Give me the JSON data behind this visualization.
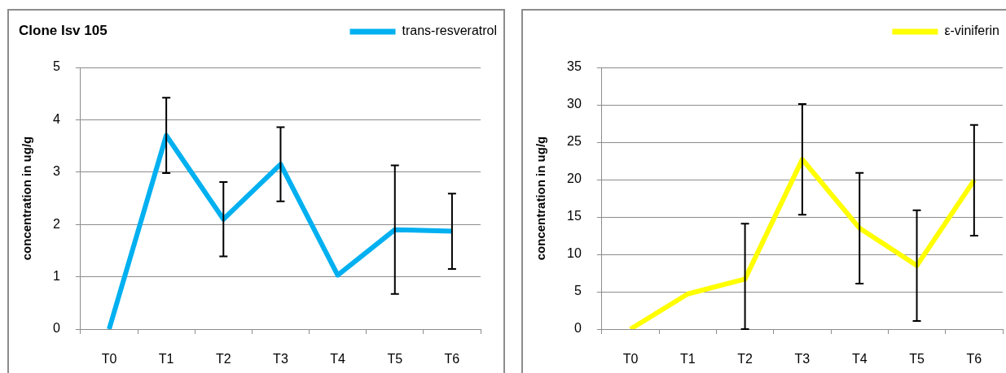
{
  "chart_data": [
    {
      "type": "line",
      "title": "Clone Isv 105",
      "categories": [
        "T0",
        "T1",
        "T2",
        "T3",
        "T4",
        "T5",
        "T6"
      ],
      "series": [
        {
          "name": "trans-resveratrol",
          "color": "#00b0f0",
          "values": [
            0,
            3.7,
            2.1,
            3.15,
            1.03,
            1.9,
            1.87
          ],
          "errors": [
            null,
            0.72,
            0.71,
            0.71,
            null,
            1.23,
            0.72
          ]
        }
      ],
      "ylabel": "concentration in ug/g",
      "ylim": [
        0,
        5
      ],
      "yticks": [
        0,
        1,
        2,
        3,
        4,
        5
      ],
      "grid": "y",
      "legend": "top right",
      "marker": "none"
    },
    {
      "type": "line",
      "categories": [
        "T0",
        "T1",
        "T2",
        "T3",
        "T4",
        "T5",
        "T6"
      ],
      "series": [
        {
          "name": "ε-viniferin",
          "color": "#ffff00",
          "values": [
            0,
            4.7,
            6.7,
            22.7,
            13.5,
            8.5,
            19.9
          ],
          "errors": [
            null,
            null,
            [
              0,
              14.1
            ],
            7.4,
            7.4,
            7.4,
            7.4
          ]
        }
      ],
      "ylabel": "concentration in ug/g",
      "ylim": [
        0,
        35
      ],
      "yticks": [
        0,
        5,
        10,
        15,
        20,
        25,
        30,
        35
      ],
      "grid": "y",
      "legend": "top right",
      "marker": "none"
    }
  ]
}
